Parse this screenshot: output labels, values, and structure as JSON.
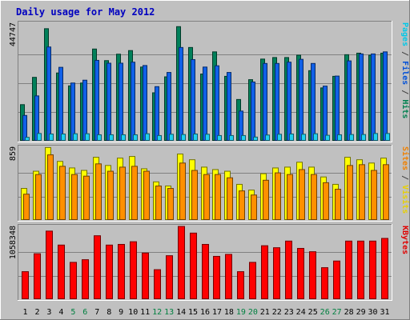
{
  "chart_data": {
    "type": "bar",
    "title": "Daily usage for May 2012",
    "categories": [
      "1",
      "2",
      "3",
      "4",
      "5",
      "6",
      "7",
      "8",
      "9",
      "10",
      "11",
      "12",
      "13",
      "14",
      "15",
      "16",
      "17",
      "18",
      "19",
      "20",
      "21",
      "22",
      "23",
      "24",
      "25",
      "26",
      "27",
      "28",
      "29",
      "30",
      "31"
    ],
    "weekend_days": [
      "5",
      "6",
      "12",
      "13",
      "19",
      "20",
      "26",
      "27"
    ],
    "weekend_label_color": "#008040",
    "weekday_label_color": "#000000",
    "panels": [
      {
        "name": "hits-files-pages",
        "ymax_label": "44747",
        "ymax": 44747,
        "axis_labels": [
          {
            "text": "Pages",
            "color": "#00C8E8"
          },
          {
            "text": " / ",
            "color": "#404040"
          },
          {
            "text": "Files",
            "color": "#0050D8"
          },
          {
            "text": " / ",
            "color": "#404040"
          },
          {
            "text": "Hits",
            "color": "#008050"
          }
        ],
        "series": [
          {
            "name": "Hits",
            "color": "#00805A",
            "values": [
              14200,
              24800,
              43700,
              26500,
              21500,
              22600,
              35800,
              31300,
              33800,
              35200,
              28800,
              18800,
              25000,
              44500,
              36400,
              26100,
              34700,
              25200,
              16200,
              23900,
              31900,
              32500,
              32500,
              33400,
              27400,
              20700,
              25200,
              33600,
              34200,
              33400,
              34200
            ]
          },
          {
            "name": "Files",
            "color": "#1060E8",
            "values": [
              10000,
              17600,
              36600,
              28700,
              22600,
              23700,
              31400,
              30300,
              30300,
              30700,
              29400,
              21200,
              26700,
              36400,
              31700,
              28800,
              29300,
              26700,
              11700,
              23000,
              30200,
              30200,
              30700,
              31800,
              30200,
              21400,
              25300,
              31200,
              33900,
              33900,
              34700
            ]
          },
          {
            "name": "Pages",
            "color": "#20D0F0",
            "values": [
              1500,
              3000,
              2800,
              2800,
              2900,
              2900,
              2500,
              2500,
              2500,
              2500,
              2900,
              2200,
              2700,
              2600,
              2800,
              2700,
              2200,
              2200,
              2200,
              1600,
              2400,
              2700,
              2800,
              2700,
              2900,
              2300,
              2500,
              2600,
              2600,
              3000,
              3000
            ]
          }
        ]
      },
      {
        "name": "visits-sites",
        "ymax_label": "859",
        "ymax": 859,
        "axis_labels": [
          {
            "text": "Sites",
            "color": "#F08000"
          },
          {
            "text": " / ",
            "color": "#404040"
          },
          {
            "text": "Visits",
            "color": "#E8D000"
          }
        ],
        "series": [
          {
            "name": "Visits",
            "color": "#FFFF00",
            "values": [
              390,
              600,
              889,
              720,
              640,
              610,
              770,
              670,
              760,
              780,
              630,
              470,
              420,
              810,
              740,
              650,
              620,
              600,
              440,
              370,
              570,
              640,
              650,
              710,
              650,
              530,
              440,
              770,
              740,
              700,
              760
            ]
          },
          {
            "name": "Sites",
            "color": "#FF9000",
            "values": [
              320,
              560,
              800,
              660,
              560,
              540,
              690,
              600,
              650,
              660,
              600,
              420,
              390,
              700,
              610,
              560,
              560,
              520,
              360,
              310,
              490,
              580,
              560,
              620,
              560,
              460,
              380,
              670,
              680,
              610,
              680
            ]
          }
        ]
      },
      {
        "name": "kbytes",
        "ymax_label": "1058348",
        "ymax": 1058348,
        "axis_labels": [
          {
            "text": "KBytes",
            "color": "#E00000"
          }
        ],
        "series": [
          {
            "name": "KBytes",
            "color": "#FF0000",
            "values": [
              420000,
              690000,
              1030000,
              820000,
              560000,
              600000,
              960000,
              820000,
              830000,
              870000,
              700000,
              450000,
              660000,
              1100000,
              1000000,
              830000,
              650000,
              680000,
              420000,
              560000,
              810000,
              780000,
              880000,
              770000,
              720000,
              480000,
              580000,
              880000,
              880000,
              880000,
              920000
            ]
          }
        ]
      }
    ]
  }
}
